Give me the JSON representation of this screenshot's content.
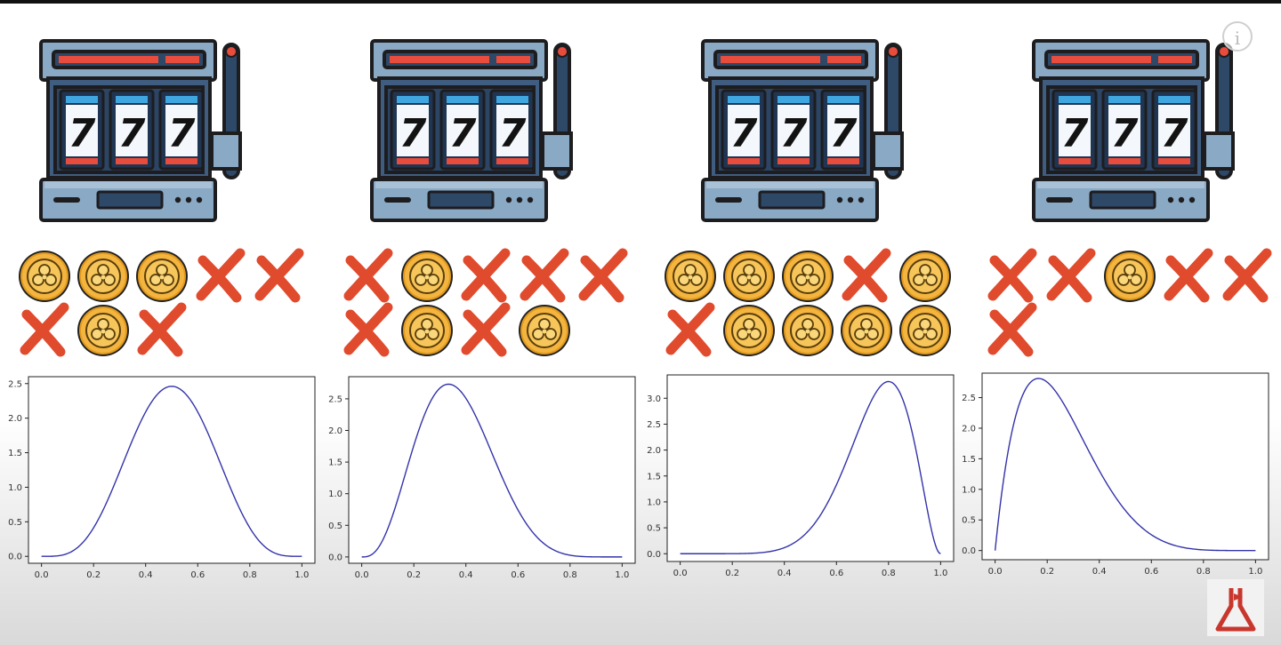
{
  "panels": [
    {
      "reels": [
        "7",
        "7",
        "7"
      ],
      "outcomes": [
        "coin",
        "coin",
        "coin",
        "x",
        "x",
        "x",
        "coin",
        "x"
      ]
    },
    {
      "reels": [
        "7",
        "7",
        "7"
      ],
      "outcomes": [
        "x",
        "coin",
        "x",
        "x",
        "x",
        "x",
        "coin",
        "x",
        "coin"
      ]
    },
    {
      "reels": [
        "7",
        "7",
        "7"
      ],
      "outcomes": [
        "coin",
        "coin",
        "coin",
        "x",
        "coin",
        "x",
        "coin",
        "coin",
        "coin",
        "coin"
      ]
    },
    {
      "reels": [
        "7",
        "7",
        "7"
      ],
      "outcomes": [
        "x",
        "x",
        "coin",
        "x",
        "x",
        "x"
      ]
    }
  ],
  "icons": {
    "win": "shamrock-coin-icon",
    "loss": "red-x-icon",
    "info": "info-icon",
    "logo": "flask-logo-icon"
  },
  "info_glyph": "i",
  "colors": {
    "curve": "#3333aa",
    "coin": "#f3b53f",
    "cross": "#e04b2e",
    "machine_blue": "#3f5d80",
    "machine_light": "#8aa9c4"
  },
  "chart_data": [
    {
      "type": "line",
      "title": "",
      "xlabel": "",
      "ylabel": "",
      "distribution_note": "Beta(a,b) density curve",
      "x_range": [
        0,
        1
      ],
      "ylim": [
        -0.1,
        2.6
      ],
      "xticks": [
        "0.0",
        "0.2",
        "0.4",
        "0.6",
        "0.8",
        "1.0"
      ],
      "yticks": [
        "0.0",
        "0.5",
        "1.0",
        "1.5",
        "2.0",
        "2.5"
      ],
      "series": [
        {
          "alpha": 5,
          "beta": 5
        }
      ]
    },
    {
      "type": "line",
      "title": "",
      "xlabel": "",
      "ylabel": "",
      "x_range": [
        0,
        1
      ],
      "ylim": [
        -0.1,
        2.85
      ],
      "xticks": [
        "0.0",
        "0.2",
        "0.4",
        "0.6",
        "0.8",
        "1.0"
      ],
      "yticks": [
        "0.0",
        "0.5",
        "1.0",
        "1.5",
        "2.0",
        "2.5"
      ],
      "series": [
        {
          "alpha": 4,
          "beta": 7
        }
      ]
    },
    {
      "type": "line",
      "title": "",
      "xlabel": "",
      "ylabel": "",
      "x_range": [
        0,
        1
      ],
      "ylim": [
        -0.15,
        3.45
      ],
      "xticks": [
        "0.0",
        "0.2",
        "0.4",
        "0.6",
        "0.8",
        "1.0"
      ],
      "yticks": [
        "0.0",
        "0.5",
        "1.0",
        "1.5",
        "2.0",
        "2.5",
        "3.0"
      ],
      "series": [
        {
          "alpha": 9,
          "beta": 3
        }
      ]
    },
    {
      "type": "line",
      "title": "",
      "xlabel": "",
      "ylabel": "",
      "x_range": [
        0,
        1
      ],
      "ylim": [
        -0.15,
        2.9
      ],
      "xticks": [
        "0.0",
        "0.2",
        "0.4",
        "0.6",
        "0.8",
        "1.0"
      ],
      "yticks": [
        "0.0",
        "0.5",
        "1.0",
        "1.5",
        "2.0",
        "2.5"
      ],
      "series": [
        {
          "alpha": 2,
          "beta": 6
        }
      ]
    }
  ]
}
